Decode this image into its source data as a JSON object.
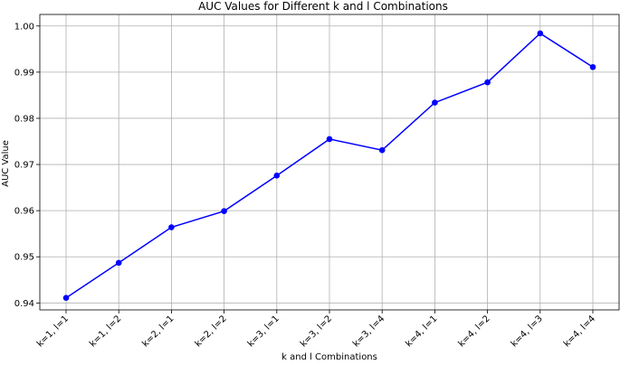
{
  "chart_data": {
    "type": "line",
    "title": "AUC Values for Different k and l Combinations",
    "xlabel": "k and l Combinations",
    "ylabel": "AUC Value",
    "categories": [
      "k=1, l=1",
      "k=1, l=2",
      "k=2, l=1",
      "k=2, l=2",
      "k=3, l=1",
      "k=3, l=2",
      "k=3, l=4",
      "k=4, l=1",
      "k=4, l=2",
      "k=4, l=3",
      "k=4, l=4"
    ],
    "values": [
      0.9411,
      0.9487,
      0.9564,
      0.9599,
      0.9676,
      0.9755,
      0.9731,
      0.9834,
      0.9878,
      0.9984,
      0.9911
    ],
    "ylim": [
      0.9385,
      1.0025
    ],
    "yticks": [
      0.94,
      0.95,
      0.96,
      0.97,
      0.98,
      0.99,
      1.0
    ],
    "ytick_labels": [
      "0.94",
      "0.95",
      "0.96",
      "0.97",
      "0.98",
      "0.99",
      "1.00"
    ],
    "grid": true,
    "marker": "circle",
    "line_color": "#0000ff",
    "grid_color": "#b0b0b0"
  }
}
